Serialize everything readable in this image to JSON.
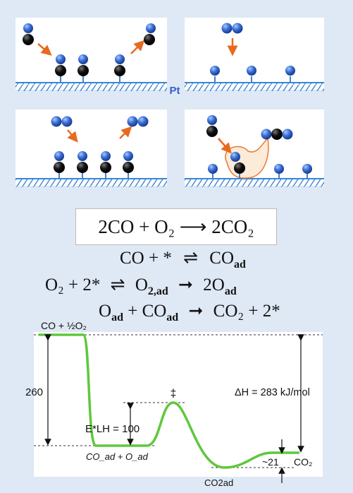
{
  "surface_label": "Pt",
  "overall_reaction": "2CO + O₂ ⟶ 2CO₂",
  "mechanism": {
    "step1": {
      "left": "CO + *",
      "right": "CO",
      "right_sub": "ad"
    },
    "step2": {
      "left": "O₂ + 2*",
      "mid": "O",
      "mid_sub": "2,ad",
      "right": "2O",
      "right_sub": "ad"
    },
    "step3": {
      "left_a": "O",
      "left_a_sub": "ad",
      "left_b": "+ CO",
      "left_b_sub": "ad",
      "right": "CO₂ + 2*"
    }
  },
  "energy_diagram": {
    "start_label": "CO + ½O₂",
    "barrier_label": "E*LH = 100",
    "adsorbed_label": "CO_ad + O_ad",
    "transition_mark": "‡",
    "dissociation_value": "260",
    "reaction_enthalpy": "ΔH = 283 kJ/mol",
    "desorption_value": "~21",
    "product_label": "CO₂",
    "adsorbed_product_label": "CO2ad",
    "curve_color": "#5ec83c"
  },
  "colors": {
    "background": "#dfe8f5",
    "panel": "#ffffff",
    "metal_surface": "#4a8fd6",
    "O_atom": "#2f63c8",
    "C_atom": "#111111",
    "arrow": "#e86a1e"
  }
}
